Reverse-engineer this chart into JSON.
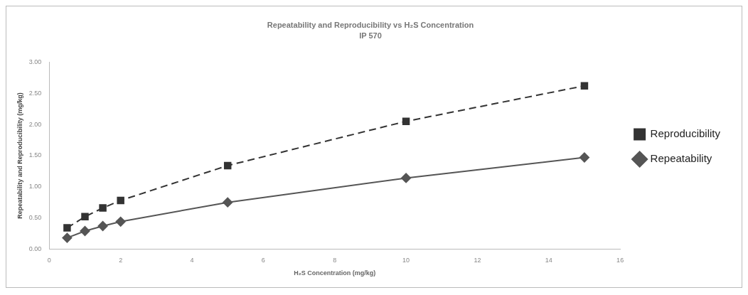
{
  "chart_data": {
    "type": "line",
    "title": "Repeatability and Reproducibility vs H₂S Concentration",
    "subtitle": "IP 570",
    "xlabel": "H₂S Concentration (mg/kg)",
    "ylabel": "Repeatability and Reproducibility (mg/kg)",
    "x": [
      0.5,
      1,
      1.5,
      2,
      5,
      10,
      15
    ],
    "series": [
      {
        "name": "Reproducibility",
        "color": "#333333",
        "marker": "square",
        "line_style": "dashed",
        "values": [
          0.34,
          0.52,
          0.66,
          0.78,
          1.34,
          2.05,
          2.62
        ]
      },
      {
        "name": "Repeatability",
        "color": "#555555",
        "marker": "diamond",
        "line_style": "solid",
        "values": [
          0.18,
          0.29,
          0.37,
          0.44,
          0.75,
          1.14,
          1.47
        ]
      }
    ],
    "xlim": [
      0,
      16
    ],
    "xticks": [
      0,
      2,
      4,
      6,
      8,
      10,
      12,
      14,
      16
    ],
    "ylim": [
      0,
      3
    ],
    "yticks": [
      {
        "value": 0,
        "label": "0.00"
      },
      {
        "value": 0.5,
        "label": "0.50"
      },
      {
        "value": 1,
        "label": "1.00"
      },
      {
        "value": 1.5,
        "label": "1.50"
      },
      {
        "value": 2,
        "label": "2.00"
      },
      {
        "value": 2.5,
        "label": "2.50"
      },
      {
        "value": 3,
        "label": "3.00"
      }
    ],
    "grid": false,
    "legend": "right"
  }
}
